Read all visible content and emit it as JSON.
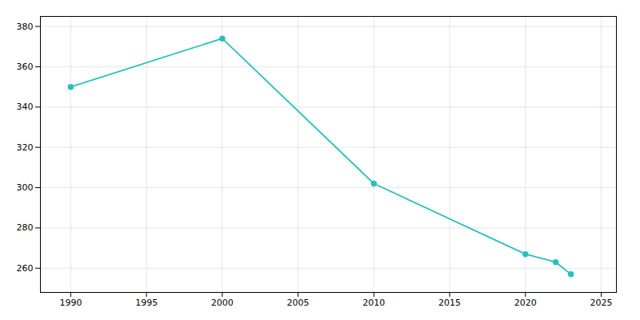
{
  "chart_data": {
    "type": "line",
    "x": [
      1990,
      2000,
      2010,
      2020,
      2022,
      2023
    ],
    "values": [
      350,
      374,
      302,
      267,
      263,
      257
    ],
    "color": "#2abfbf",
    "marker": "circle",
    "xlim": [
      1988,
      2026
    ],
    "ylim": [
      248,
      385
    ],
    "xticks": [
      1990,
      1995,
      2000,
      2005,
      2010,
      2015,
      2020,
      2025
    ],
    "yticks": [
      260,
      280,
      300,
      320,
      340,
      360,
      380
    ],
    "grid": true
  }
}
